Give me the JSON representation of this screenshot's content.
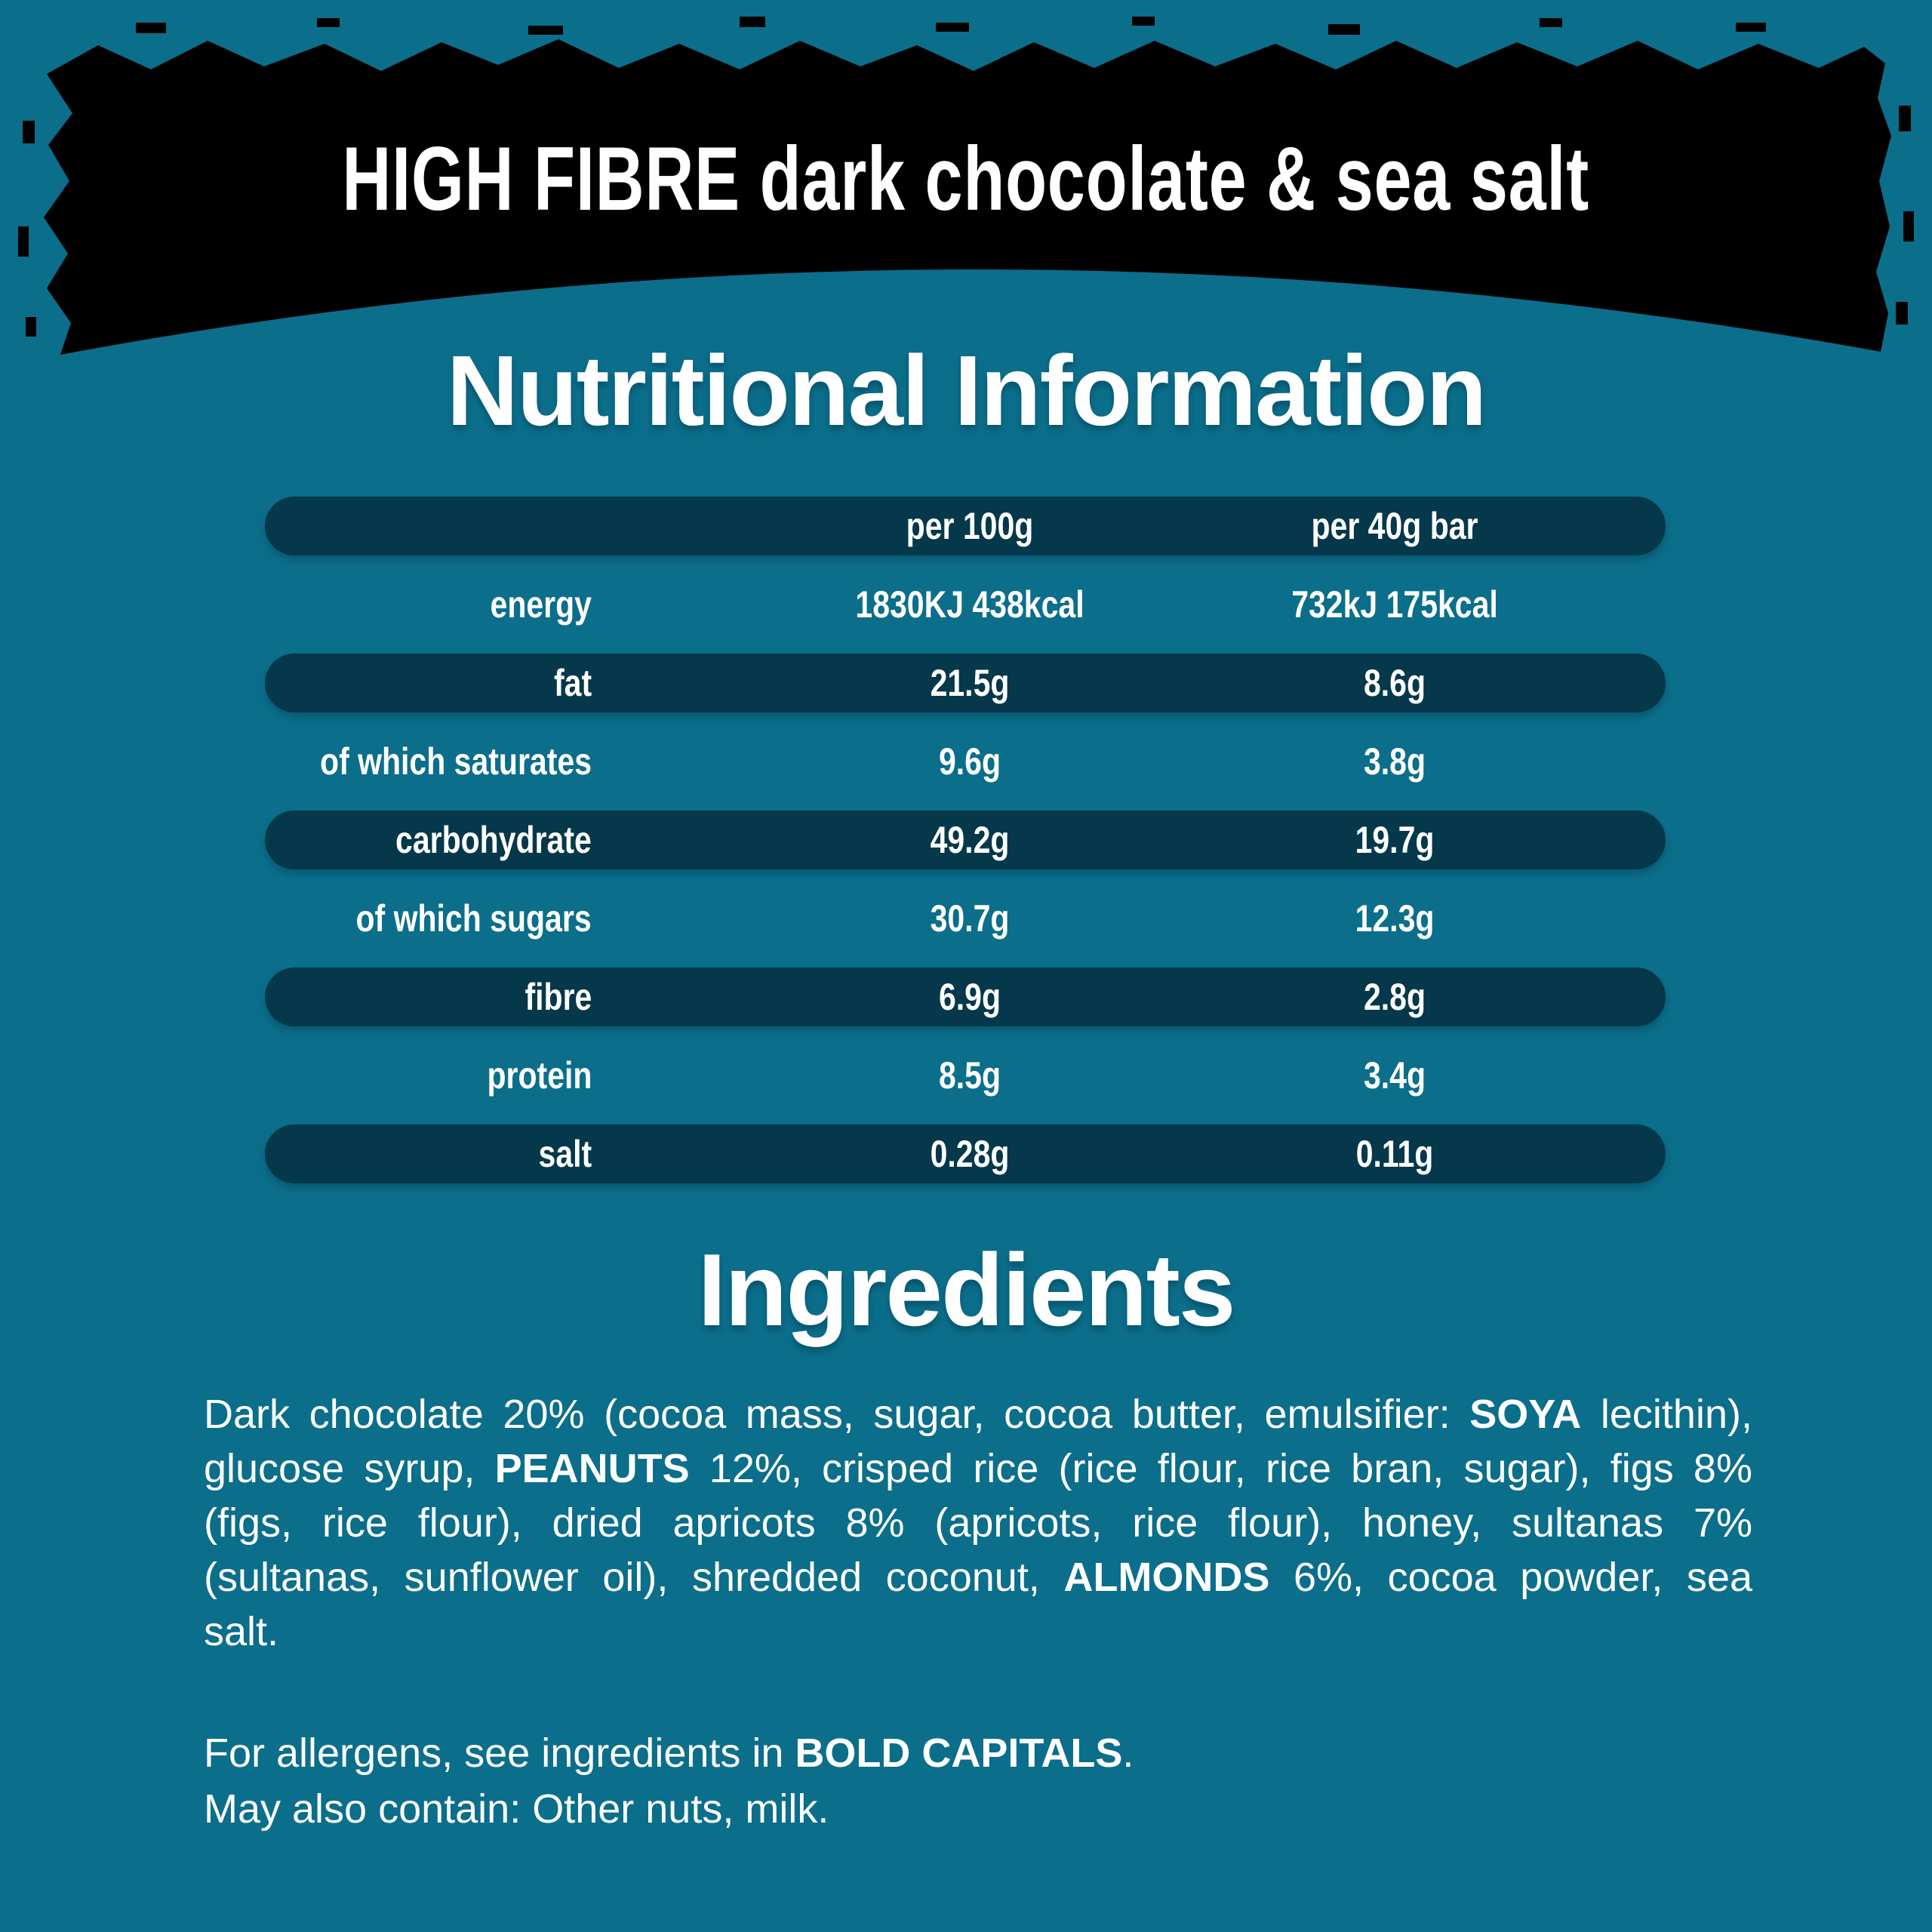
{
  "colors": {
    "background": "#0b6e8b",
    "banner": "#000000",
    "row_pill": "#04384a",
    "text": "#ffffff"
  },
  "banner": {
    "title": "HIGH FIBRE dark chocolate & sea salt"
  },
  "nutrition": {
    "heading": "Nutritional Information",
    "columns": [
      "per 100g",
      "per 40g bar"
    ],
    "rows": [
      {
        "label": "energy",
        "per100": "1830KJ 438kcal",
        "per40": "732kJ 175kcal"
      },
      {
        "label": "fat",
        "per100": "21.5g",
        "per40": "8.6g"
      },
      {
        "label": "of which saturates",
        "per100": "9.6g",
        "per40": "3.8g"
      },
      {
        "label": "carbohydrate",
        "per100": "49.2g",
        "per40": "19.7g"
      },
      {
        "label": "of which sugars",
        "per100": "30.7g",
        "per40": "12.3g"
      },
      {
        "label": "fibre",
        "per100": "6.9g",
        "per40": "2.8g"
      },
      {
        "label": "protein",
        "per100": "8.5g",
        "per40": "3.4g"
      },
      {
        "label": "salt",
        "per100": "0.28g",
        "per40": "0.11g"
      }
    ]
  },
  "ingredients": {
    "heading": "Ingredients",
    "lines": [
      {
        "justify": true,
        "segments": [
          {
            "t": "Dark chocolate 20% (cocoa mass, sugar, cocoa butter, emulsifier: ",
            "b": false
          },
          {
            "t": "SOYA",
            "b": true
          },
          {
            "t": " lecithin),",
            "b": false
          }
        ]
      },
      {
        "justify": true,
        "segments": [
          {
            "t": "glucose syrup, ",
            "b": false
          },
          {
            "t": "PEANUTS",
            "b": true
          },
          {
            "t": " 12%, crisped rice (rice flour, rice bran, sugar), figs 8%",
            "b": false
          }
        ]
      },
      {
        "justify": true,
        "segments": [
          {
            "t": "(figs, rice flour), dried apricots 8% (apricots, rice flour), honey, sultanas 7%",
            "b": false
          }
        ]
      },
      {
        "justify": true,
        "segments": [
          {
            "t": "(sultanas, sunflower oil), shredded coconut, ",
            "b": false
          },
          {
            "t": "ALMONDS",
            "b": true
          },
          {
            "t": " 6%, cocoa powder, sea",
            "b": false
          }
        ]
      },
      {
        "justify": false,
        "segments": [
          {
            "t": "salt.",
            "b": false
          }
        ]
      }
    ]
  },
  "allergens": {
    "lines": [
      {
        "justify": false,
        "segments": [
          {
            "t": "For allergens, see ingredients in ",
            "b": false
          },
          {
            "t": "BOLD CAPITALS",
            "b": true
          },
          {
            "t": ".",
            "b": false
          }
        ]
      },
      {
        "justify": false,
        "segments": [
          {
            "t": "May also contain: Other nuts, milk.",
            "b": false
          }
        ]
      }
    ]
  }
}
